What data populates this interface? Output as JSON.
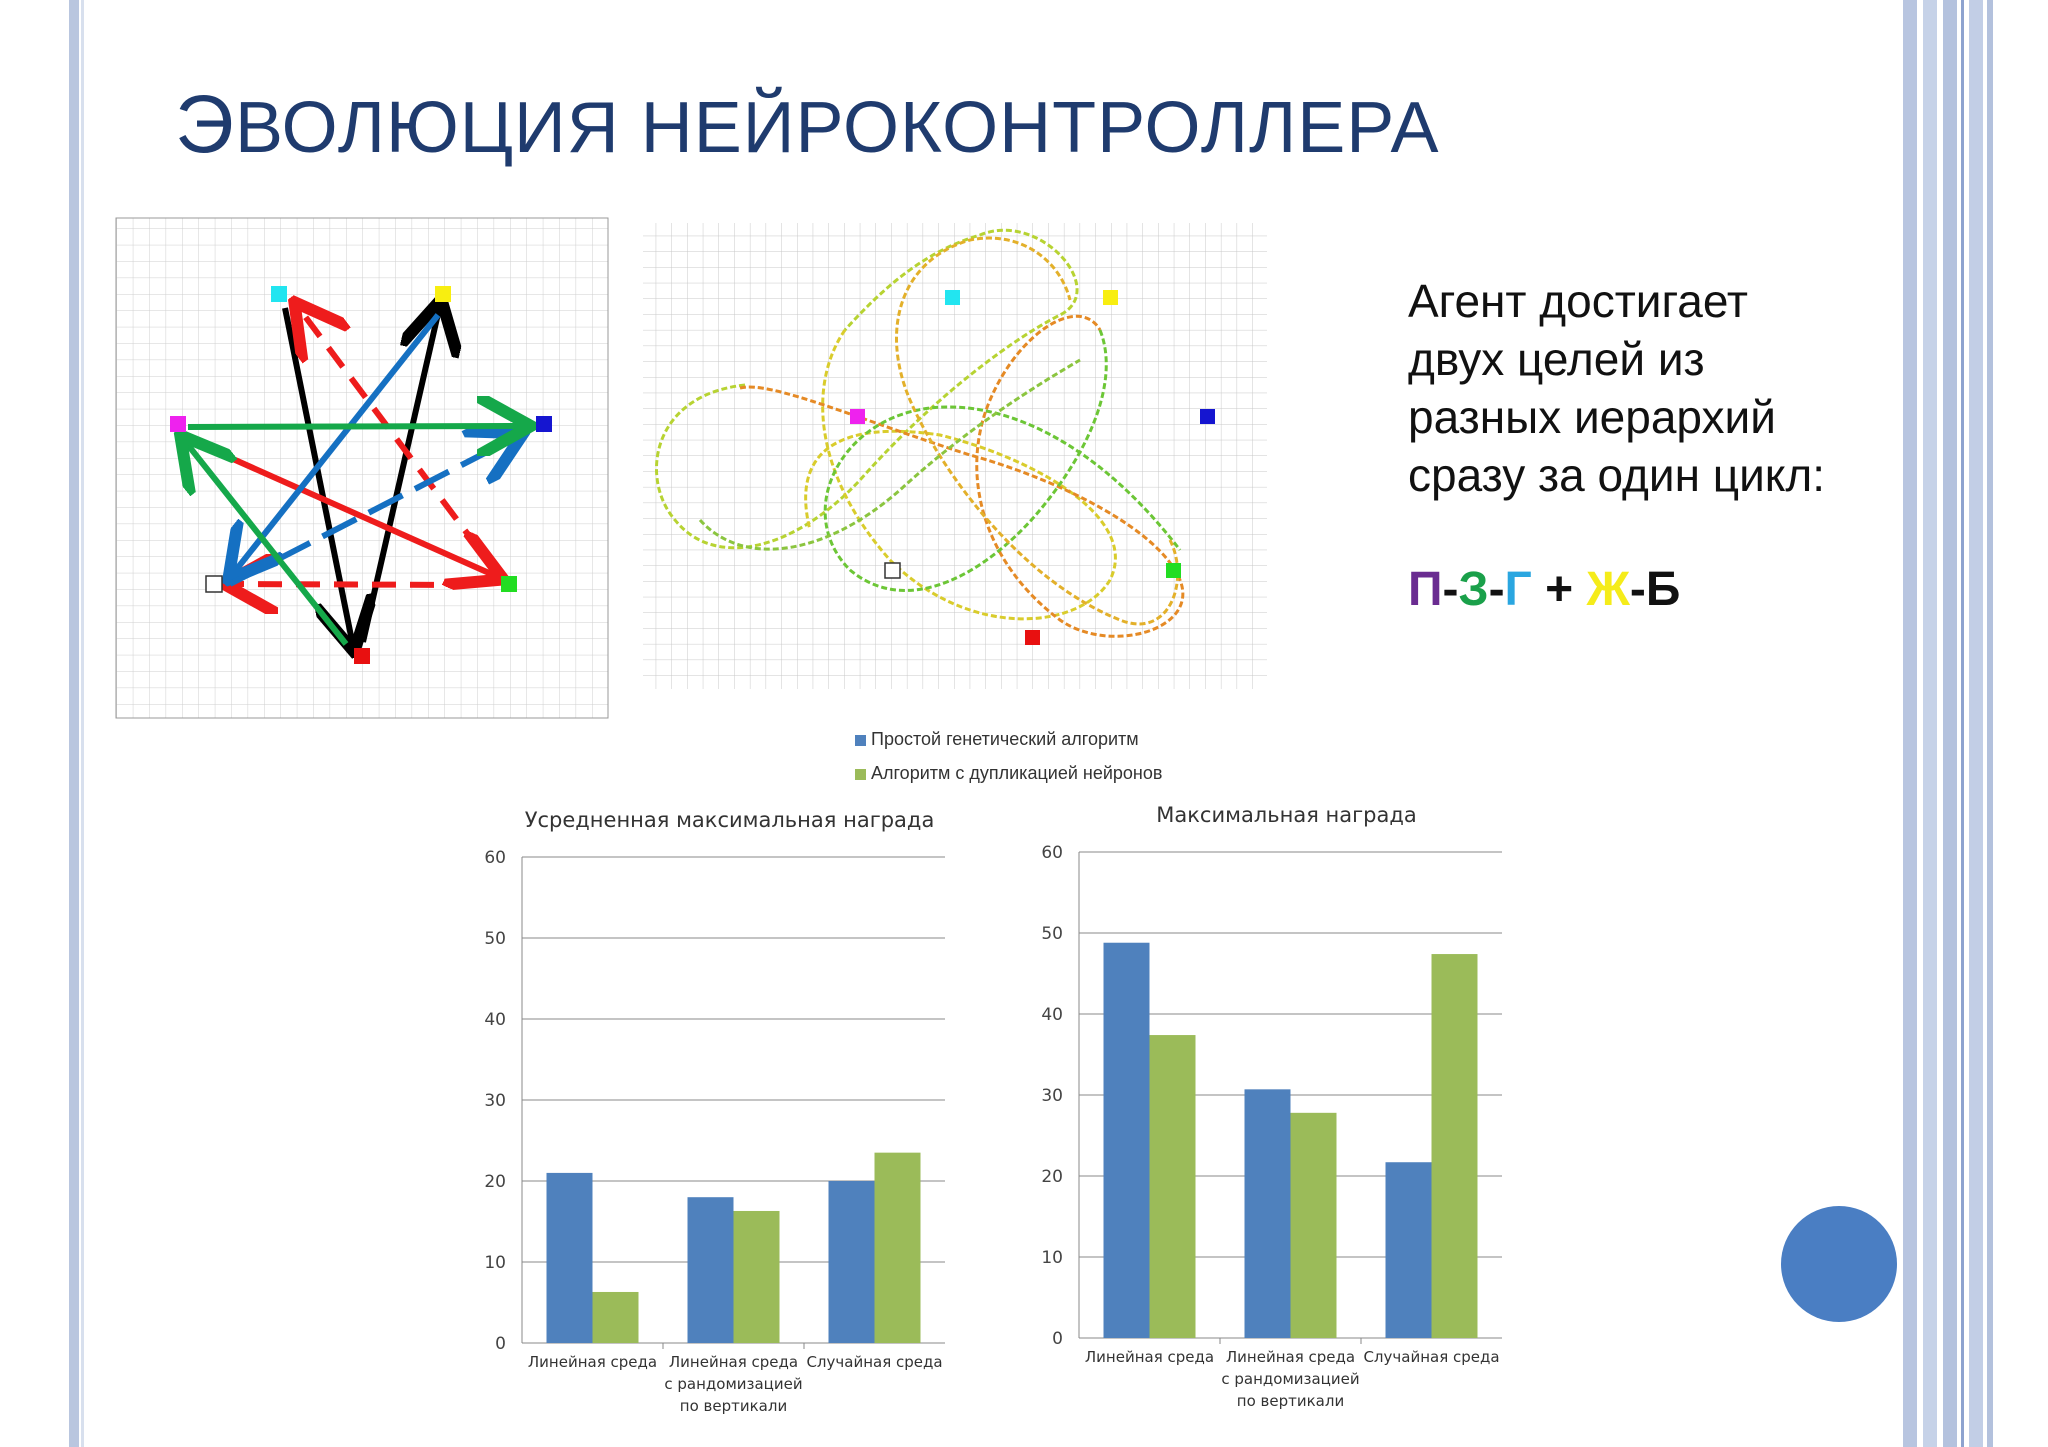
{
  "slide": {
    "title": "Эволюция нейроконтроллера",
    "title_first_letter": "Э",
    "title_rest": "ВОЛЮЦИЯ НЕЙРОКОНТРОЛЛЕРА",
    "title_color": "#1f3b6e"
  },
  "description": {
    "lines": [
      "Агент достигает",
      "двух целей из",
      "разных иерархий",
      "сразу за один цикл:"
    ]
  },
  "formula": {
    "parts": [
      {
        "text": "П",
        "color": "#6a2c91"
      },
      {
        "text": "-",
        "color": "#111111"
      },
      {
        "text": "З",
        "color": "#1aa04a"
      },
      {
        "text": "-",
        "color": "#111111"
      },
      {
        "text": "Г",
        "color": "#2aa6e0"
      },
      {
        "text": " + ",
        "color": "#111111"
      },
      {
        "text": "Ж",
        "color": "#f5ec1a"
      },
      {
        "text": "-",
        "color": "#111111"
      },
      {
        "text": "Б",
        "color": "#111111"
      }
    ]
  },
  "legend": {
    "items": [
      {
        "label": "Простой генетический алгоритм",
        "color": "#4f81bd"
      },
      {
        "label": "Алгоритм с дупликацией нейронов",
        "color": "#9bbb59"
      }
    ]
  },
  "chart_data": [
    {
      "type": "bar",
      "title": "Усредненная максимальная награда",
      "categories": [
        "Линейная среда",
        "Линейная среда с рандомизацией по вертикали",
        "Случайная среда"
      ],
      "category_lines": [
        [
          "Линейная среда"
        ],
        [
          "Линейная среда",
          "с рандомизацией",
          "по вертикали"
        ],
        [
          "Случайная среда"
        ]
      ],
      "series": [
        {
          "name": "Простой генетический алгоритм",
          "values": [
            21,
            18,
            20
          ],
          "color": "#4f81bd"
        },
        {
          "name": "Алгоритм с дупликацией нейронов",
          "values": [
            6.3,
            16.3,
            23.5
          ],
          "color": "#9bbb59"
        }
      ],
      "ylim": [
        0,
        60
      ],
      "yticks": [
        0,
        10,
        20,
        30,
        40,
        50,
        60
      ],
      "grid": true
    },
    {
      "type": "bar",
      "title": "Максимальная награда",
      "categories": [
        "Линейная среда",
        "Линейная среда с рандомизацией по вертикали",
        "Случайная среда"
      ],
      "category_lines": [
        [
          "Линейная среда"
        ],
        [
          "Линейная среда",
          "с рандомизацией",
          "по вертикали"
        ],
        [
          "Случайная среда"
        ]
      ],
      "series": [
        {
          "name": "Простой генетический алгоритм",
          "values": [
            48.8,
            30.7,
            21.7
          ],
          "color": "#4f81bd"
        },
        {
          "name": "Алгоритм с дупликацией нейронов",
          "values": [
            37.4,
            27.8,
            47.4
          ],
          "color": "#9bbb59"
        }
      ],
      "ylim": [
        0,
        60
      ],
      "yticks": [
        0,
        10,
        20,
        30,
        40,
        50,
        60
      ],
      "grid": true
    }
  ],
  "diagrams": {
    "star_targets": [
      {
        "name": "cyan-target",
        "color": "#22e5f0"
      },
      {
        "name": "yellow-target",
        "color": "#f8ee10"
      },
      {
        "name": "magenta-target",
        "color": "#ee22ee"
      },
      {
        "name": "blue-target",
        "color": "#1515d0"
      },
      {
        "name": "white-target",
        "color": "#ffffff"
      },
      {
        "name": "green-target",
        "color": "#22dd22"
      },
      {
        "name": "red-target",
        "color": "#e81010"
      }
    ]
  }
}
